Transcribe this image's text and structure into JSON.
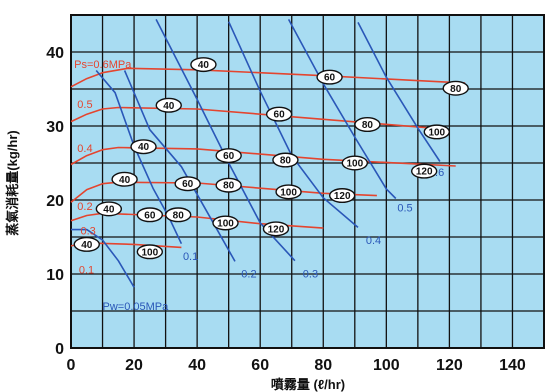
{
  "chart_data": {
    "type": "line",
    "xlabel": "噴霧量 (ℓ/hr)",
    "ylabel": "蒸氣消耗量(kg/hr)",
    "xlim": [
      0,
      150
    ],
    "ylim": [
      0,
      45
    ],
    "xticks": [
      0,
      20,
      40,
      60,
      80,
      100,
      120,
      140
    ],
    "yticks": [
      0,
      10,
      20,
      30,
      40
    ],
    "grid": true,
    "colors": {
      "background": "#a8dcf2",
      "grid": "#111111",
      "steam": "#e4452f",
      "water": "#2a57b8",
      "oval_fill": "#ffffff"
    },
    "steam_series": [
      {
        "name": "Ps=0.6MPa",
        "label_at": [
          1,
          38.4
        ],
        "points": [
          [
            0,
            35.3
          ],
          [
            5,
            36.4
          ],
          [
            10,
            37.2
          ],
          [
            18,
            37.8
          ],
          [
            40,
            37.6
          ],
          [
            80,
            36.8
          ],
          [
            125,
            35.8
          ]
        ]
      },
      {
        "name": "0.5",
        "label_at": [
          2,
          33.0
        ],
        "points": [
          [
            0,
            30.6
          ],
          [
            5,
            31.6
          ],
          [
            10,
            32.3
          ],
          [
            15,
            32.5
          ],
          [
            40,
            32.3
          ],
          [
            80,
            30.9
          ],
          [
            118,
            29.6
          ]
        ]
      },
      {
        "name": "0.4",
        "label_at": [
          2,
          27.0
        ],
        "points": [
          [
            0,
            24.8
          ],
          [
            5,
            26.0
          ],
          [
            10,
            26.8
          ],
          [
            15,
            27.1
          ],
          [
            40,
            26.9
          ],
          [
            80,
            25.5
          ],
          [
            122,
            24.6
          ]
        ]
      },
      {
        "name": "0.3",
        "label_at": [
          3,
          15.9
        ],
        "points": [
          [
            0,
            19.7
          ],
          [
            5,
            21.4
          ],
          [
            10,
            22.2
          ],
          [
            15,
            22.4
          ],
          [
            40,
            22.3
          ],
          [
            80,
            20.9
          ],
          [
            97,
            20.6
          ]
        ]
      },
      {
        "name": "0.2",
        "label_at": [
          2,
          19.2
        ],
        "points": [
          [
            0,
            17.2
          ],
          [
            5,
            17.9
          ],
          [
            10,
            18.2
          ],
          [
            40,
            17.7
          ],
          [
            60,
            16.8
          ],
          [
            80,
            16.2
          ]
        ]
      },
      {
        "name": "0.1",
        "label_at": [
          2.5,
          10.6
        ],
        "points": [
          [
            0,
            13.8
          ],
          [
            5,
            14.2
          ],
          [
            20,
            14.0
          ],
          [
            35,
            13.6
          ]
        ]
      }
    ],
    "water_series": [
      {
        "name": "Pw=0.05MPa",
        "label_at": [
          10,
          5.7
        ],
        "points": [
          [
            0,
            16.0
          ],
          [
            5,
            16.0
          ],
          [
            10,
            14.6
          ],
          [
            15,
            11.8
          ],
          [
            20,
            8.2
          ]
        ]
      },
      {
        "name": "0.1",
        "label_at": [
          35.5,
          12.4
        ],
        "points": [
          [
            8,
            37.5
          ],
          [
            14,
            34.5
          ],
          [
            20,
            27.3
          ],
          [
            26,
            21.6
          ],
          [
            31,
            17.7
          ],
          [
            35,
            14.1
          ]
        ]
      },
      {
        "name": "0.2",
        "label_at": [
          54,
          10.1
        ],
        "points": [
          [
            17,
            37.5
          ],
          [
            25,
            29.5
          ],
          [
            35,
            24.5
          ],
          [
            45,
            17.0
          ],
          [
            52,
            11.7
          ]
        ]
      },
      {
        "name": "0.3",
        "label_at": [
          73.5,
          10.1
        ],
        "points": [
          [
            27,
            44.4
          ],
          [
            40,
            33.6
          ],
          [
            50,
            25.0
          ],
          [
            60,
            16.9
          ],
          [
            71,
            11.8
          ]
        ]
      },
      {
        "name": "0.4",
        "label_at": [
          93.5,
          14.6
        ],
        "points": [
          [
            50,
            44.1
          ],
          [
            60,
            34.7
          ],
          [
            70,
            26.0
          ],
          [
            80,
            20.3
          ],
          [
            91,
            16.3
          ]
        ]
      },
      {
        "name": "0.5",
        "label_at": [
          103.5,
          19.0
        ],
        "points": [
          [
            69,
            44.4
          ],
          [
            80,
            35.7
          ],
          [
            90,
            28.5
          ],
          [
            100,
            21.5
          ],
          [
            103,
            20.2
          ]
        ]
      },
      {
        "name": "0.6",
        "label_at": [
          113.5,
          23.8
        ],
        "points": [
          [
            91,
            44.0
          ],
          [
            100,
            36.6
          ],
          [
            110,
            29.7
          ],
          [
            117,
            25.2
          ]
        ]
      }
    ],
    "flow_markers": [
      {
        "text": "40",
        "x": 42,
        "y": 38.3
      },
      {
        "text": "60",
        "x": 82,
        "y": 36.6
      },
      {
        "text": "80",
        "x": 122,
        "y": 35.1
      },
      {
        "text": "40",
        "x": 31,
        "y": 32.8
      },
      {
        "text": "60",
        "x": 66,
        "y": 31.6
      },
      {
        "text": "80",
        "x": 94,
        "y": 30.2
      },
      {
        "text": "100",
        "x": 116,
        "y": 29.2
      },
      {
        "text": "40",
        "x": 23,
        "y": 27.2
      },
      {
        "text": "60",
        "x": 50,
        "y": 26.0
      },
      {
        "text": "80",
        "x": 68,
        "y": 25.4
      },
      {
        "text": "100",
        "x": 90,
        "y": 25.0
      },
      {
        "text": "120",
        "x": 112,
        "y": 23.9
      },
      {
        "text": "40",
        "x": 17,
        "y": 22.8
      },
      {
        "text": "60",
        "x": 37,
        "y": 22.2
      },
      {
        "text": "80",
        "x": 50,
        "y": 22.0
      },
      {
        "text": "100",
        "x": 69,
        "y": 21.1
      },
      {
        "text": "120",
        "x": 86,
        "y": 20.6
      },
      {
        "text": "40",
        "x": 12,
        "y": 18.8
      },
      {
        "text": "60",
        "x": 25,
        "y": 18.0
      },
      {
        "text": "80",
        "x": 34,
        "y": 18.0
      },
      {
        "text": "100",
        "x": 49,
        "y": 16.9
      },
      {
        "text": "120",
        "x": 65,
        "y": 16.1
      },
      {
        "text": "40",
        "x": 5,
        "y": 14.0
      },
      {
        "text": "100",
        "x": 25,
        "y": 13.0
      }
    ]
  }
}
